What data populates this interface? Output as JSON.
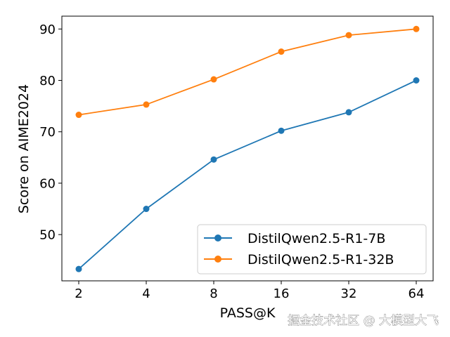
{
  "chart_data": {
    "type": "line",
    "xlabel": "PASS@K",
    "ylabel": "Score on AIME2024",
    "x": [
      2,
      4,
      8,
      16,
      32,
      64
    ],
    "x_ticks": [
      "2",
      "4",
      "8",
      "16",
      "32",
      "64"
    ],
    "x_scale": "log2",
    "ylim": [
      41,
      92.5
    ],
    "y_ticks": [
      50,
      60,
      70,
      80,
      90
    ],
    "grid": false,
    "legend_position": "lower-right",
    "series": [
      {
        "name": "DistilQwen2.5-R1-7B",
        "color": "#1f77b4",
        "values": [
          43.3,
          55.0,
          64.6,
          70.2,
          73.8,
          80.0
        ]
      },
      {
        "name": "DistilQwen2.5-R1-32B",
        "color": "#ff7f0e",
        "values": [
          73.3,
          75.3,
          80.2,
          85.6,
          88.8,
          90.0
        ]
      }
    ]
  },
  "watermark": "掘金技术社区 @ 大模型大飞"
}
